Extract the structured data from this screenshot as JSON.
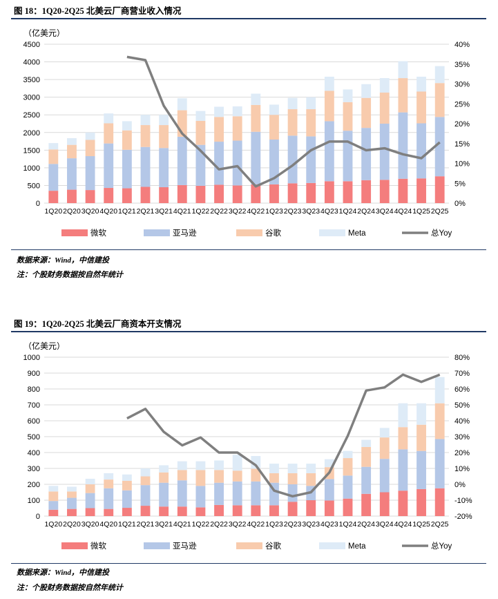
{
  "figures": [
    {
      "title": "图 18：1Q20-2Q25 北美云厂商营业收入情况",
      "unit_label": "（亿美元）",
      "source": "数据来源：Wind，中信建投",
      "note": "注：个股财务数据按自然年统计"
    },
    {
      "title": "图 19：1Q20-2Q25 北美云厂商资本开支情况",
      "unit_label": "（亿美元）",
      "source": "数据来源：Wind，中信建投",
      "note": "注：个股财务数据按自然年统计"
    }
  ],
  "colors": {
    "microsoft": "#f47d7d",
    "amazon": "#b4c7e7",
    "google": "#f8cbad",
    "meta": "#deebf7",
    "yoy": "#7f7f7f",
    "rule": "#1f3864"
  },
  "chart_data": [
    {
      "type": "bar",
      "stacked": true,
      "categories": [
        "1Q20",
        "2Q20",
        "3Q20",
        "4Q20",
        "1Q21",
        "2Q21",
        "3Q21",
        "4Q21",
        "1Q22",
        "2Q22",
        "3Q22",
        "4Q22",
        "1Q23",
        "2Q23",
        "3Q23",
        "4Q23",
        "1Q24",
        "2Q24",
        "3Q24",
        "4Q24",
        "1Q25",
        "2Q25"
      ],
      "ylim": [
        0,
        4500
      ],
      "yticks": [
        "0",
        "500",
        "1000",
        "1500",
        "2000",
        "2500",
        "3000",
        "3500",
        "4000",
        "4500"
      ],
      "y2lim": [
        0,
        40
      ],
      "y2ticks": [
        "0%",
        "5%",
        "10%",
        "15%",
        "20%",
        "25%",
        "30%",
        "35%",
        "40%"
      ],
      "legend": [
        "微软",
        "亚马逊",
        "谷歌",
        "Meta",
        "总Yoy"
      ],
      "legend_position": "bottom",
      "series": [
        {
          "name": "微软",
          "values": [
            350,
            380,
            370,
            430,
            420,
            460,
            450,
            510,
            490,
            520,
            500,
            530,
            530,
            560,
            570,
            620,
            620,
            650,
            660,
            690,
            700,
            760
          ]
        },
        {
          "name": "亚马逊",
          "values": [
            760,
            890,
            960,
            1260,
            1090,
            1130,
            1110,
            1370,
            1160,
            1220,
            1270,
            1490,
            1270,
            1350,
            1320,
            1700,
            1430,
            1480,
            1590,
            1880,
            1560,
            1680
          ]
        },
        {
          "name": "谷歌",
          "values": [
            410,
            380,
            460,
            570,
            550,
            620,
            650,
            750,
            680,
            700,
            690,
            760,
            700,
            750,
            770,
            860,
            810,
            850,
            880,
            970,
            900,
            960
          ]
        },
        {
          "name": "Meta",
          "values": [
            180,
            190,
            210,
            280,
            260,
            290,
            290,
            340,
            280,
            290,
            280,
            320,
            290,
            320,
            340,
            400,
            360,
            390,
            410,
            480,
            420,
            480
          ]
        },
        {
          "name": "总Yoy",
          "axis": "right",
          "values": [
            null,
            null,
            null,
            null,
            36.8,
            36.0,
            24.5,
            17.5,
            13.2,
            8.5,
            9.3,
            4.2,
            6.3,
            9.5,
            13.3,
            15.5,
            15.5,
            13.3,
            13.8,
            12.3,
            11.3,
            15.3
          ]
        }
      ]
    },
    {
      "type": "bar",
      "stacked": true,
      "categories": [
        "1Q20",
        "2Q20",
        "3Q20",
        "4Q20",
        "1Q21",
        "2Q21",
        "3Q21",
        "4Q21",
        "1Q22",
        "2Q22",
        "3Q22",
        "4Q22",
        "1Q23",
        "2Q23",
        "3Q23",
        "4Q23",
        "1Q24",
        "2Q24",
        "3Q24",
        "4Q24",
        "1Q25",
        "2Q25"
      ],
      "ylim": [
        0,
        1000
      ],
      "yticks": [
        "0",
        "100",
        "200",
        "300",
        "400",
        "500",
        "600",
        "700",
        "800",
        "900",
        "1000"
      ],
      "y2lim": [
        -20,
        80
      ],
      "y2ticks": [
        "-20%",
        "-10%",
        "0%",
        "10%",
        "20%",
        "30%",
        "40%",
        "50%",
        "60%",
        "70%",
        "80%"
      ],
      "legend": [
        "微软",
        "亚马逊",
        "谷歌",
        "Meta",
        "总Yoy"
      ],
      "legend_position": "bottom",
      "series": [
        {
          "name": "微软",
          "values": [
            40,
            45,
            50,
            45,
            52,
            65,
            60,
            60,
            55,
            70,
            68,
            68,
            68,
            90,
            100,
            98,
            110,
            140,
            150,
            160,
            170,
            175
          ]
        },
        {
          "name": "亚马逊",
          "values": [
            55,
            70,
            95,
            130,
            110,
            130,
            150,
            165,
            135,
            140,
            150,
            150,
            142,
            110,
            90,
            135,
            145,
            170,
            210,
            260,
            240,
            310
          ]
        },
        {
          "name": "谷歌",
          "values": [
            60,
            40,
            55,
            55,
            60,
            55,
            65,
            65,
            100,
            80,
            68,
            80,
            60,
            70,
            80,
            75,
            110,
            125,
            135,
            140,
            165,
            225
          ]
        },
        {
          "name": "Meta",
          "values": [
            35,
            30,
            35,
            40,
            40,
            50,
            45,
            55,
            55,
            60,
            100,
            80,
            60,
            60,
            60,
            50,
            45,
            45,
            60,
            150,
            135,
            165
          ]
        },
        {
          "name": "总Yoy",
          "axis": "right",
          "values": [
            null,
            null,
            null,
            null,
            41.5,
            47.5,
            33.0,
            24.5,
            29.5,
            20.0,
            20.0,
            12.0,
            -4.0,
            -7.5,
            -5.0,
            7.5,
            30.5,
            59.0,
            61.0,
            69.0,
            64.5,
            69.0
          ]
        }
      ]
    }
  ]
}
